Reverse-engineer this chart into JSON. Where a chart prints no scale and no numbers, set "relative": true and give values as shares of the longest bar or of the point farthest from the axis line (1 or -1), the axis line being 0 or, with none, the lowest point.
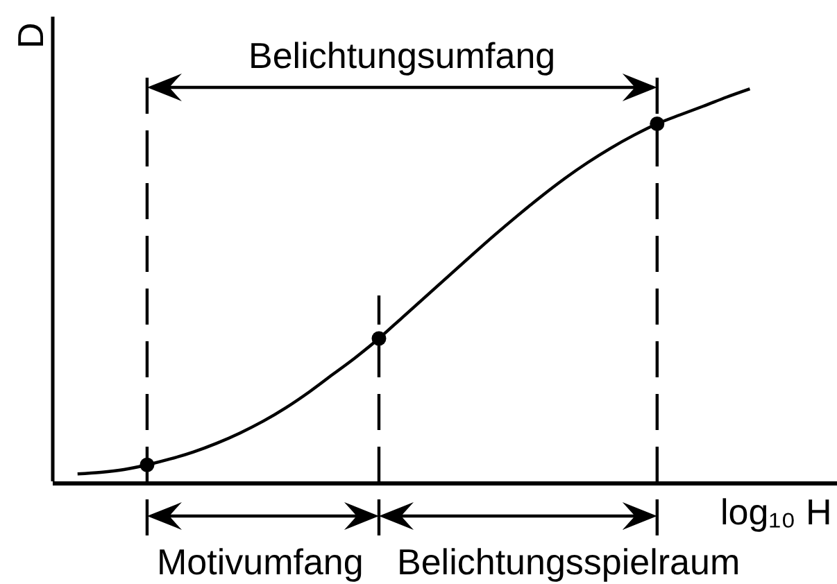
{
  "chart_data": {
    "type": "line",
    "relative": true,
    "categories": [
      null,
      null,
      null,
      null,
      null,
      null,
      null,
      null,
      null,
      null,
      null,
      null,
      null,
      null,
      null,
      null,
      null,
      null,
      null,
      null,
      null,
      null,
      null,
      null,
      null,
      null,
      null,
      null,
      null,
      null
    ],
    "xlabel": "log₁₀ H",
    "ylabel": "D",
    "series": [
      {
        "color": "#000000",
        "marker": "none",
        "values": [
          0.019,
          0.023,
          0.03,
          0.042,
          0.057,
          0.075,
          0.097,
          0.123,
          0.153,
          0.188,
          0.228,
          0.272,
          0.316,
          0.364,
          0.417,
          0.47,
          0.523,
          0.576,
          0.628,
          0.678,
          0.726,
          0.771,
          0.812,
          0.849,
          0.882,
          0.911,
          0.934,
          0.956,
          0.979,
          1
        ]
      },
      {
        "color": "#000000",
        "marker": "circle",
        "values": [
          null,
          null,
          null,
          0.042,
          null,
          null,
          null,
          null,
          null,
          null,
          null,
          null,
          null,
          0.364,
          null,
          null,
          null,
          null,
          null,
          null,
          null,
          null,
          null,
          null,
          null,
          0.911,
          null,
          null,
          null,
          null
        ]
      }
    ],
    "ref_lines": [
      {
        "axis": "x",
        "color": "#000000",
        "line_style": "dashed"
      },
      {
        "axis": "x",
        "color": "#000000",
        "line_style": "dashed"
      },
      {
        "axis": "x",
        "color": "#000000",
        "line_style": "dashed"
      }
    ],
    "annotations": [
      "Belichtungsumfang",
      "Motivumfang",
      "Belichtungsspielraum"
    ],
    "line_style": "solid",
    "grid": false
  }
}
